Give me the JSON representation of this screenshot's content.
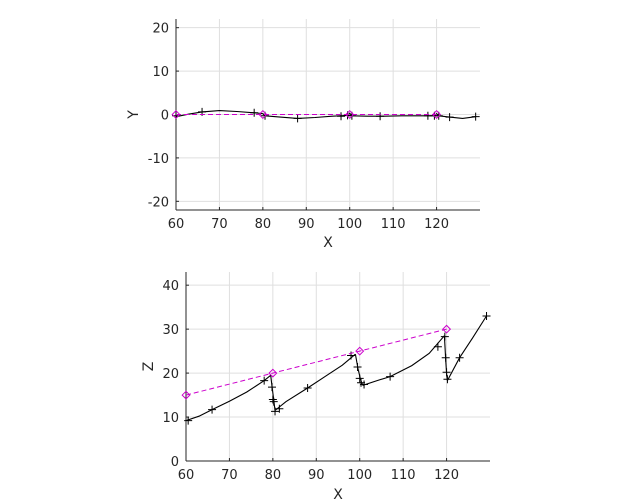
{
  "figure": {
    "background": "#ffffff"
  },
  "chart_data": [
    {
      "type": "line",
      "xlabel": "X",
      "ylabel": "Y",
      "xlim": [
        60,
        130
      ],
      "ylim": [
        -22,
        22
      ],
      "xticks": [
        60,
        70,
        80,
        90,
        100,
        110,
        120
      ],
      "yticks": [
        -20,
        -10,
        0,
        10,
        20
      ],
      "grid": true,
      "series": [
        {
          "style": "trajectory",
          "color": "#000000",
          "marker": "plus",
          "x": [
            60,
            63,
            66,
            70,
            74,
            78,
            80,
            80.5,
            84,
            88,
            92,
            96,
            99.5,
            100,
            100.5,
            104,
            108,
            112,
            116,
            119.5,
            120,
            120.5,
            123,
            126,
            129
          ],
          "y": [
            -0.5,
            0.1,
            0.6,
            0.9,
            0.7,
            0.4,
            0.2,
            -0.3,
            -0.6,
            -0.9,
            -0.7,
            -0.4,
            -0.2,
            0.3,
            -0.3,
            -0.4,
            -0.4,
            -0.3,
            -0.3,
            -0.3,
            0.2,
            -0.3,
            -0.6,
            -0.9,
            -0.5
          ],
          "markers_x": [
            60,
            66,
            78,
            80.5,
            88,
            98,
            99.5,
            100.5,
            107,
            118,
            119.5,
            120.5,
            123,
            129
          ],
          "markers_y": [
            -0.3,
            0.6,
            0.4,
            -0.3,
            -0.9,
            -0.4,
            -0.2,
            -0.3,
            -0.4,
            -0.3,
            -0.3,
            -0.3,
            -0.6,
            -0.5
          ]
        },
        {
          "style": "waypoints",
          "color": "#cc00cc",
          "marker": "diamond",
          "dashed": true,
          "x": [
            60,
            80,
            100,
            120
          ],
          "y": [
            0,
            0,
            0,
            0
          ]
        }
      ]
    },
    {
      "type": "line",
      "xlabel": "X",
      "ylabel": "Z",
      "xlim": [
        60,
        130
      ],
      "ylim": [
        0,
        43
      ],
      "xticks": [
        60,
        70,
        80,
        90,
        100,
        110,
        120
      ],
      "yticks": [
        0,
        10,
        20,
        30,
        40
      ],
      "grid": true,
      "series": [
        {
          "style": "trajectory",
          "color": "#000000",
          "marker": "plus",
          "segments": [
            {
              "x": [
                60,
                63,
                66,
                70,
                74,
                78,
                79.5
              ],
              "y": [
                9.2,
                10.2,
                11.7,
                13.6,
                15.7,
                18.3,
                19.5
              ]
            },
            {
              "x": [
                79.5,
                79.8,
                80.2,
                80.5
              ],
              "y": [
                19.5,
                17.0,
                14.0,
                11.5
              ]
            },
            {
              "x": [
                80.5,
                83,
                88,
                92,
                96,
                99
              ],
              "y": [
                11.5,
                13.5,
                16.6,
                19.2,
                21.8,
                24.3
              ]
            },
            {
              "x": [
                99,
                99.6,
                100.2,
                100.7
              ],
              "y": [
                24.3,
                21.0,
                18.5,
                17.2
              ]
            },
            {
              "x": [
                100.7,
                104,
                107,
                112,
                116,
                119.5
              ],
              "y": [
                17.2,
                18.3,
                19.2,
                21.7,
                24.5,
                28.5
              ]
            },
            {
              "x": [
                119.5,
                119.8,
                120.0,
                120.2
              ],
              "y": [
                28.5,
                23.0,
                19.8,
                18.3
              ]
            },
            {
              "x": [
                120.2,
                123,
                126,
                129.2
              ],
              "y": [
                18.3,
                23.5,
                28,
                33
              ]
            }
          ],
          "markers_x": [
            60.5,
            66,
            78,
            79.8,
            80,
            80.2,
            80.5,
            81.5,
            88,
            98,
            99.5,
            100,
            100.3,
            101,
            107,
            118,
            119.6,
            119.8,
            120,
            120.2,
            123,
            129.2
          ],
          "markers_y": [
            9.2,
            11.7,
            18.3,
            16.8,
            14.0,
            13.5,
            11.3,
            11.9,
            16.6,
            24.0,
            21.4,
            18.8,
            17.8,
            17.4,
            19.2,
            26.0,
            28.3,
            23.5,
            20.2,
            18.6,
            23.5,
            33.0
          ]
        },
        {
          "style": "waypoints",
          "color": "#cc00cc",
          "marker": "diamond",
          "dashed": true,
          "x": [
            60,
            80,
            100,
            120
          ],
          "y": [
            15,
            20,
            25,
            30
          ]
        }
      ]
    }
  ]
}
